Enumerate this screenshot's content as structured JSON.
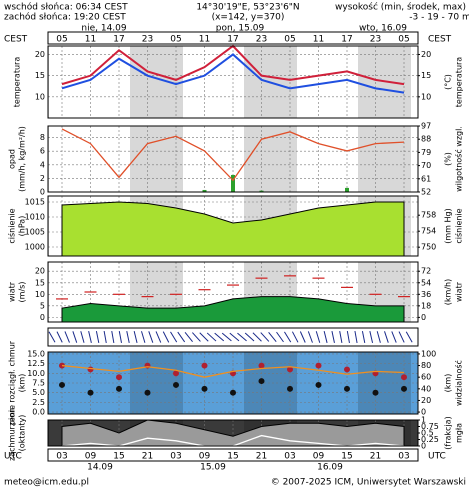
{
  "header": {
    "sunrise": "wschód słońca: 06:34 CEST",
    "sunset": "zachód słońca: 19:20 CEST",
    "coords": "14°30'19\"E, 53°23'6\"N",
    "grid": "(x=142, y=370)",
    "elev_title": "wysokość (min, środek, max)",
    "elev": "-3 - 19 - 70 m"
  },
  "top_axis": {
    "zone": "CEST",
    "days": [
      "nie, 14.09",
      "pon, 15.09",
      "wto, 16.09"
    ],
    "hours": [
      "05",
      "11",
      "17",
      "23",
      "05",
      "11",
      "17",
      "23",
      "05",
      "11",
      "17",
      "23",
      "05"
    ]
  },
  "bottom_axis": {
    "zone": "UTC",
    "hours": [
      "03",
      "09",
      "15",
      "21",
      "03",
      "09",
      "15",
      "21",
      "03",
      "09",
      "15",
      "21",
      "03"
    ],
    "dates": [
      "14.09",
      "15.09",
      "16.09"
    ]
  },
  "footer": {
    "left": "meteo@icm.edu.pl",
    "right": "© 2007-2025 ICM, Uniwersytet Warszawski"
  },
  "chart_data": [
    {
      "type": "line",
      "ylabel": [
        "temperatura"
      ],
      "y2label": [
        "(°C)",
        "temperatura"
      ],
      "ylim": [
        5,
        22
      ],
      "yticks": [
        10,
        15,
        20
      ],
      "y2lim": [
        5,
        22
      ],
      "y2ticks": [
        10,
        15,
        20
      ],
      "background": "#ffffff",
      "series": [
        {
          "color": "#d0203a",
          "values": [
            13,
            15,
            21,
            16,
            14,
            17,
            22,
            15,
            14,
            15,
            16,
            14,
            13
          ]
        },
        {
          "color": "#1f4fe0",
          "values": [
            12,
            14,
            19,
            15,
            13,
            15,
            20,
            14,
            12,
            13,
            14,
            12,
            11
          ]
        }
      ]
    },
    {
      "type": "bar",
      "ylabel": [
        "opad",
        "(mm/h, kg/m²/h)"
      ],
      "y2label": [
        "(%)",
        "wilgotność wzgl."
      ],
      "ylim": [
        0,
        9.7
      ],
      "yticks": [
        0,
        2,
        4,
        6,
        8
      ],
      "y2lim": [
        52,
        97
      ],
      "y2ticks": [
        52,
        61,
        70,
        79,
        88,
        97
      ],
      "background": "#ffffff",
      "series": [
        {
          "color": "#2ca02c",
          "values": [
            0,
            0,
            0,
            0,
            0,
            0.3,
            2.5,
            0.2,
            0,
            0,
            0.6,
            0,
            0
          ]
        },
        {
          "color": "#e0502a",
          "axis": "y2",
          "render": "line",
          "values": [
            95,
            85,
            62,
            85,
            90,
            80,
            60,
            88,
            93,
            85,
            80,
            85,
            86
          ]
        }
      ]
    },
    {
      "type": "area",
      "ylabel": [
        "ciśnienie",
        "(hPa)"
      ],
      "y2label": [
        "(mm Hg)",
        "ciśnienie"
      ],
      "ylim": [
        997,
        1017
      ],
      "yticks": [
        1000,
        1005,
        1010,
        1015
      ],
      "y2lim": [
        747.8,
        762.8
      ],
      "y2ticks": [
        750,
        754,
        758
      ],
      "background": "#ffffff",
      "series": [
        {
          "color": "#a8e030",
          "values": [
            1014,
            1014.5,
            1015,
            1014.5,
            1013,
            1011,
            1008,
            1009,
            1011,
            1013,
            1014,
            1015,
            1015
          ]
        }
      ]
    },
    {
      "type": "area",
      "ylabel": [
        "wiatr",
        "(m/s)"
      ],
      "y2label": [
        "(km/h)",
        "wiatr"
      ],
      "ylim": [
        -2,
        24
      ],
      "yticks": [
        0,
        5,
        10,
        15,
        20
      ],
      "y2lim": [
        -7.2,
        86.4
      ],
      "y2ticks": [
        0,
        18,
        36,
        54,
        72
      ],
      "background": "#ffffff",
      "series": [
        {
          "color": "#1a9a3a",
          "values": [
            4,
            6,
            5,
            4,
            4,
            5,
            8,
            9,
            9,
            8,
            6,
            5,
            5
          ]
        },
        {
          "color": "#d02020",
          "render": "dash",
          "values": [
            8,
            11,
            10,
            9,
            10,
            12,
            14,
            17,
            18,
            17,
            13,
            10,
            9
          ]
        }
      ]
    },
    {
      "type": "scatter",
      "ylabel": [
        "pion. rozciągł. chmur",
        "(km)"
      ],
      "y2label": [
        "(km)",
        "widzialność"
      ],
      "ylim": [
        -0.5,
        15.5
      ],
      "yticks": [
        {
          "value": 0,
          "label": "0.0"
        },
        2.5,
        {
          "value": 5,
          "label": "5.0"
        },
        7.5,
        {
          "value": 10,
          "label": "10.0"
        },
        12.5,
        {
          "value": 15,
          "label": "15.0"
        }
      ],
      "y2lim": [
        -3.33,
        103.33
      ],
      "y2ticks": [
        0,
        20,
        40,
        60,
        80,
        100
      ],
      "background": "#5a9fd8",
      "series": [
        {
          "color": "#b02030",
          "values": [
            12,
            11,
            9,
            12,
            10,
            12,
            10,
            12,
            11,
            12,
            11,
            10,
            9
          ]
        },
        {
          "color": "#111111",
          "values": [
            7,
            5,
            6,
            5,
            7,
            6,
            5,
            8,
            6,
            7,
            6,
            5,
            6
          ]
        },
        {
          "color": "#f09020",
          "axis": "y2",
          "render": "line",
          "values": [
            80,
            75,
            70,
            78,
            72,
            60,
            70,
            75,
            78,
            72,
            65,
            70,
            68
          ]
        }
      ]
    },
    {
      "type": "area",
      "ylabel": [
        "zachmurzenie",
        "(oktanty)"
      ],
      "y2label": [
        "(frakcja)",
        "mgła"
      ],
      "ylim": [
        0,
        8
      ],
      "yticks": [],
      "y2lim": [
        0,
        1
      ],
      "y2ticks": [
        0,
        0.25,
        0.5,
        0.75,
        1
      ],
      "background": "#3a3a3a",
      "series": [
        {
          "color": "#9a9a9a",
          "values": [
            6,
            7,
            4,
            8,
            7,
            5,
            3,
            6,
            7,
            7,
            6,
            7,
            6
          ]
        },
        {
          "color": "#ffffff",
          "axis": "y2",
          "render": "line",
          "values": [
            0,
            0.1,
            0,
            0.3,
            0.2,
            0,
            0,
            0.4,
            0.2,
            0.1,
            0,
            0.1,
            0
          ]
        }
      ]
    }
  ]
}
